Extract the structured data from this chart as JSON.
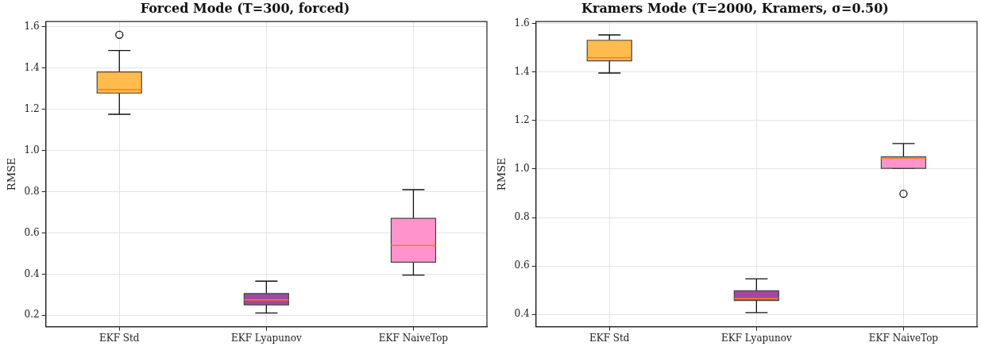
{
  "chart_data": [
    {
      "type": "box",
      "title": "Forced Mode (T=300, forced)",
      "ylabel": "RMSE",
      "categories": [
        "EKF Std",
        "EKF Lyapunov",
        "EKF NaiveTop"
      ],
      "colors": [
        "#ffbb4d",
        "#a347a3",
        "#ff94cc"
      ],
      "boxes": [
        {
          "low": 1.176,
          "q1": 1.279,
          "median": 1.295,
          "q3": 1.382,
          "high": 1.486,
          "outliers": [
            1.562
          ]
        },
        {
          "low": 0.211,
          "q1": 0.251,
          "median": 0.275,
          "q3": 0.306,
          "high": 0.366
        },
        {
          "low": 0.395,
          "q1": 0.458,
          "median": 0.539,
          "q3": 0.671,
          "high": 0.81
        }
      ],
      "ylim": [
        0.145,
        1.626
      ],
      "yticks": [
        {
          "value": 0.2,
          "label": "0.2"
        },
        {
          "value": 0.4,
          "label": "0.4"
        },
        {
          "value": 0.6,
          "label": "0.6"
        },
        {
          "value": 0.8,
          "label": "0.8"
        },
        {
          "value": 1.0,
          "label": "1.0"
        },
        {
          "value": 1.2,
          "label": "1.2"
        },
        {
          "value": 1.4,
          "label": "1.4"
        },
        {
          "value": 1.6,
          "label": "1.6"
        }
      ],
      "grid": true
    },
    {
      "type": "box",
      "title": "Kramers Mode (T=2000, Kramers, σ=0.50)",
      "ylabel": "RMSE",
      "categories": [
        "EKF Std",
        "EKF Lyapunov",
        "EKF NaiveTop"
      ],
      "colors": [
        "#ffbb4d",
        "#a347a3",
        "#ff94cc"
      ],
      "boxes": [
        {
          "low": 1.396,
          "q1": 1.446,
          "median": 1.459,
          "q3": 1.531,
          "high": 1.553
        },
        {
          "low": 0.408,
          "q1": 0.458,
          "median": 0.466,
          "q3": 0.498,
          "high": 0.547
        },
        {
          "low": 1.003,
          "q1": 1.003,
          "median": 1.045,
          "q3": 1.05,
          "high": 1.105,
          "outliers": [
            0.898
          ]
        }
      ],
      "ylim": [
        0.35,
        1.608
      ],
      "yticks": [
        {
          "value": 0.4,
          "label": "0.4"
        },
        {
          "value": 0.6,
          "label": "0.6"
        },
        {
          "value": 0.8,
          "label": "0.8"
        },
        {
          "value": 1.0,
          "label": "1.0"
        },
        {
          "value": 1.2,
          "label": "1.2"
        },
        {
          "value": 1.4,
          "label": "1.4"
        },
        {
          "value": 1.6,
          "label": "1.6"
        }
      ],
      "grid": true
    }
  ]
}
